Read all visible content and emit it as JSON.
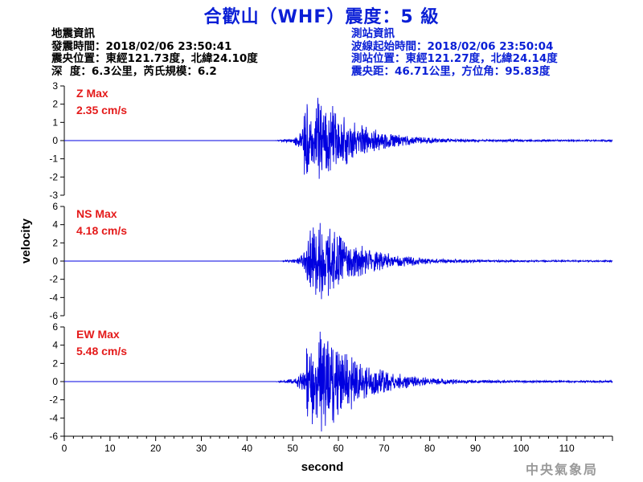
{
  "header": {
    "title": "合歡山（WHF）震度：5 級"
  },
  "event_info": {
    "heading": "地震資訊",
    "origin_time": "發震時間：2018/02/06 23:50:41",
    "epicenter": "震央位置：東經121.73度，北緯24.10度",
    "depth_magnitude": "深  度：6.3公里，芮氏規模：6.2"
  },
  "station_info": {
    "heading": "測站資訊",
    "wave_start": "波線起始時間：2018/02/06 23:50:04",
    "station_location": "測站位置：東經121.27度，北緯24.14度",
    "epicentral_distance": "震央距：46.71公里，方位角：95.83度"
  },
  "footer": {
    "agency": "中央氣象局"
  },
  "colors": {
    "title": "#0a1fd6",
    "trace": "#0000e0",
    "label": "#e41a1a",
    "station_text": "#0a1fd6"
  },
  "chart_data": [
    {
      "type": "line",
      "component": "Z",
      "label_line1": "Z Max",
      "label_line2": "2.35 cm/s",
      "ylim": [
        -3,
        3
      ],
      "yticks": [
        "3",
        "2",
        "1",
        "0",
        "-1",
        "-2",
        "-3"
      ],
      "xlim": [
        0,
        120
      ],
      "signal": {
        "onset": 46,
        "peak_time": 55.5,
        "peak_abs": 2.35,
        "decay": 7.5,
        "min_value": -2.1
      }
    },
    {
      "type": "line",
      "component": "NS",
      "label_line1": "NS Max",
      "label_line2": "4.18 cm/s",
      "ylim": [
        -6,
        6
      ],
      "yticks": [
        "6",
        "4",
        "2",
        "0",
        "-2",
        "-4",
        "-6"
      ],
      "xlim": [
        0,
        120
      ],
      "signal": {
        "onset": 47,
        "peak_time": 56,
        "peak_abs": 4.18,
        "decay": 8,
        "min_value": -4.18
      }
    },
    {
      "type": "line",
      "component": "EW",
      "label_line1": "EW Max",
      "label_line2": "5.48 cm/s",
      "ylim": [
        -6,
        6
      ],
      "yticks": [
        "6",
        "4",
        "2",
        "0",
        "-2",
        "-4",
        "-6"
      ],
      "xlim": [
        0,
        120
      ],
      "signal": {
        "onset": 46,
        "peak_time": 56,
        "peak_abs": 5.48,
        "decay": 8,
        "min_value": -5.48
      }
    }
  ],
  "axes": {
    "ylabel": "velocity",
    "xlabel": "second",
    "xticks": [
      "0",
      "10",
      "20",
      "30",
      "40",
      "50",
      "60",
      "70",
      "80",
      "90",
      "100",
      "110"
    ]
  }
}
